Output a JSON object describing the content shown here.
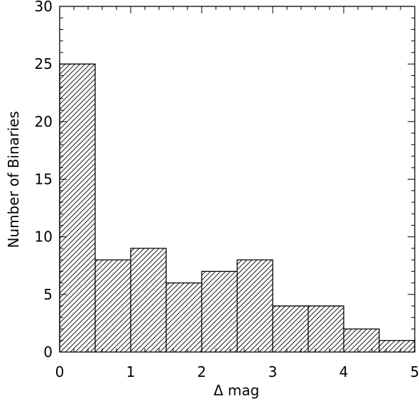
{
  "chart_data": {
    "type": "bar",
    "subtype": "histogram",
    "xlabel": "Δ mag",
    "ylabel": "Number of Binaries",
    "xlim": [
      0,
      5
    ],
    "ylim": [
      0,
      30
    ],
    "bins": [
      {
        "x0": 0.0,
        "x1": 0.5,
        "value": 25
      },
      {
        "x0": 0.5,
        "x1": 1.0,
        "value": 8
      },
      {
        "x0": 1.0,
        "x1": 1.5,
        "value": 9
      },
      {
        "x0": 1.5,
        "x1": 2.0,
        "value": 6
      },
      {
        "x0": 2.0,
        "x1": 2.5,
        "value": 7
      },
      {
        "x0": 2.5,
        "x1": 3.0,
        "value": 8
      },
      {
        "x0": 3.0,
        "x1": 3.5,
        "value": 4
      },
      {
        "x0": 3.5,
        "x1": 4.0,
        "value": 4
      },
      {
        "x0": 4.0,
        "x1": 4.5,
        "value": 2
      },
      {
        "x0": 4.5,
        "x1": 5.0,
        "value": 1
      }
    ],
    "x_ticks": [
      {
        "value": 0,
        "label": "0"
      },
      {
        "value": 1,
        "label": "1"
      },
      {
        "value": 2,
        "label": "2"
      },
      {
        "value": 3,
        "label": "3"
      },
      {
        "value": 4,
        "label": "4"
      },
      {
        "value": 5,
        "label": "5"
      }
    ],
    "y_ticks": [
      {
        "value": 0,
        "label": "0"
      },
      {
        "value": 5,
        "label": "5"
      },
      {
        "value": 10,
        "label": "10"
      },
      {
        "value": 15,
        "label": "15"
      },
      {
        "value": 20,
        "label": "20"
      },
      {
        "value": 25,
        "label": "25"
      },
      {
        "value": 30,
        "label": "30"
      }
    ],
    "x_minor_step": 0.2,
    "y_minor_step": 1,
    "fill": "diagonal-hatch",
    "grid": false,
    "colors": {
      "line": "#000000",
      "background": "#ffffff"
    }
  }
}
